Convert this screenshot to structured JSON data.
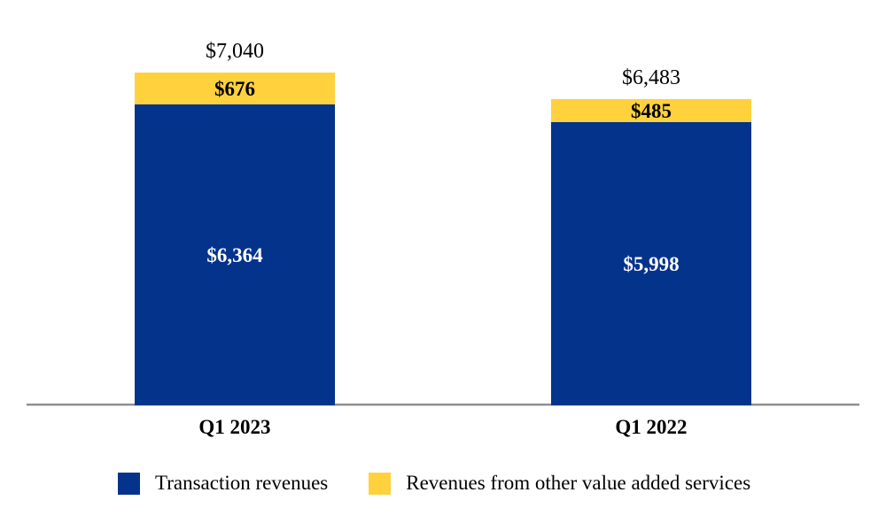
{
  "chart_data": {
    "type": "bar",
    "stacked": true,
    "title": "",
    "xlabel": "",
    "ylabel": "",
    "grid": false,
    "legend_position": "bottom",
    "axis_line_color": "#8f8f8f",
    "categories": [
      "Q1 2023",
      "Q1 2022"
    ],
    "totals": [
      7040,
      6483
    ],
    "total_labels": [
      "$7,040",
      "$6,483"
    ],
    "series": [
      {
        "name": "Transaction revenues",
        "color": "#04338C",
        "label_color": "#FFFFFF",
        "values": [
          6364,
          5998
        ],
        "labels": [
          "$6,364",
          "$5,998"
        ]
      },
      {
        "name": "Revenues from other value added services",
        "color": "#FFD13D",
        "label_color": "#000000",
        "values": [
          676,
          485
        ],
        "labels": [
          "$676",
          "$485"
        ]
      }
    ]
  },
  "legend": {
    "items": [
      {
        "label": "Transaction revenues",
        "color": "#04338C"
      },
      {
        "label": "Revenues from other value added services",
        "color": "#FFD13D"
      }
    ]
  }
}
